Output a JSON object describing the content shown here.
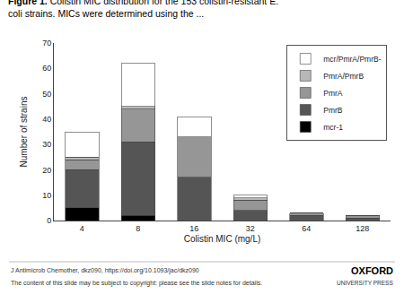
{
  "chart_data": {
    "type": "bar",
    "stacked": true,
    "title": "Figure 1. Colistin MIC distribution for the 153 colistin-resistant E.\ncoli strains. MICs were determined using the ...",
    "xlabel": "Colistin MIC (mg/L)",
    "ylabel": "Number of strains",
    "categories": [
      "4",
      "8",
      "16",
      "32",
      "64",
      "128"
    ],
    "series": [
      {
        "name": "mcr-1",
        "color": "#000000",
        "values": [
          5,
          2,
          0,
          0,
          0,
          0
        ]
      },
      {
        "name": "PmrB",
        "color": "#555555",
        "values": [
          15,
          29,
          17,
          4,
          2,
          1
        ]
      },
      {
        "name": "PmrA",
        "color": "#969696",
        "values": [
          4,
          13,
          16,
          4,
          1,
          1
        ]
      },
      {
        "name": "PmrA/PmrB",
        "color": "#b8b8b8",
        "values": [
          1,
          1,
          0,
          1,
          0,
          0
        ]
      },
      {
        "name": "mcr/PmrA/PmrB-",
        "color": "#ffffff",
        "values": [
          10,
          17,
          8,
          1,
          0,
          0
        ]
      }
    ],
    "ylim": [
      0,
      70
    ],
    "yticks": [
      0,
      10,
      20,
      30,
      40,
      50,
      60,
      70
    ],
    "grid": false,
    "legend": "upper right",
    "annotations": [
      "J Antimicrob Chemother, dkz090, https://doi.org/10.1093/jac/dkz090",
      "The content of this slide may be subject to copyright: please see the slide notes for details.",
      "OXFORD",
      "UNIVERSITY PRESS"
    ]
  }
}
